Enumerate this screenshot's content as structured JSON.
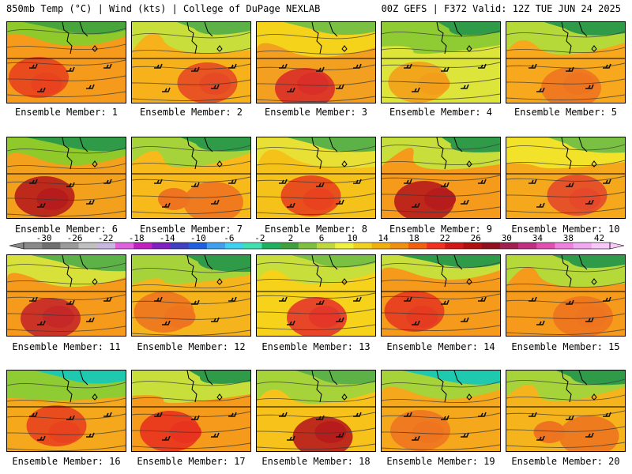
{
  "header": {
    "left_title": "850mb Temp (°C) | Wind (kts) | College of DuPage NEXLAB",
    "right_title": "00Z GEFS | F372 Valid: 12Z TUE JUN 24 2025"
  },
  "label_prefix": "Ensemble Member: ",
  "members": [
    {
      "label": "Ensemble Member: 1",
      "base": "#f59a1a",
      "hot": "#e8431e",
      "cool": "#8fca2a",
      "green": "#48a53c"
    },
    {
      "label": "Ensemble Member: 2",
      "base": "#f7b11a",
      "hot": "#e54a24",
      "cool": "#c8de3a",
      "green": "#5cb247"
    },
    {
      "label": "Ensemble Member: 3",
      "base": "#f3a020",
      "hot": "#d92f28",
      "cool": "#f5d31a",
      "green": "#7ac143"
    },
    {
      "label": "Ensemble Member: 4",
      "base": "#dde53a",
      "hot": "#f39e1a",
      "cool": "#8fcb32",
      "green": "#2f9a48"
    },
    {
      "label": "Ensemble Member: 5",
      "base": "#f7a81c",
      "hot": "#ee7420",
      "cool": "#b4d938",
      "green": "#2f9a48"
    },
    {
      "label": "Ensemble Member: 6",
      "base": "#f3a01c",
      "hot": "#b71c1c",
      "cool": "#8fca2a",
      "green": "#2f9a48"
    },
    {
      "label": "Ensemble Member: 7",
      "base": "#f7ba1a",
      "hot": "#ee7420",
      "cool": "#a6d23a",
      "green": "#2f9a48"
    },
    {
      "label": "Ensemble Member: 8",
      "base": "#f5c21a",
      "hot": "#e8431e",
      "cool": "#e8e035",
      "green": "#5cb247"
    },
    {
      "label": "Ensemble Member: 9",
      "base": "#f59a1a",
      "hot": "#b71c1c",
      "cool": "#c8de3a",
      "green": "#2f9a48"
    },
    {
      "label": "Ensemble Member: 10",
      "base": "#f5a81c",
      "hot": "#e5492a",
      "cool": "#f2e22a",
      "green": "#7ac143"
    },
    {
      "label": "Ensemble Member: 11",
      "base": "#f59a1a",
      "hot": "#c62828",
      "cool": "#d8e03a",
      "green": "#5cb247"
    },
    {
      "label": "Ensemble Member: 12",
      "base": "#f5b41c",
      "hot": "#ee7420",
      "cool": "#a6d23a",
      "green": "#2f9a48"
    },
    {
      "label": "Ensemble Member: 13",
      "base": "#f7d21a",
      "hot": "#e5362a",
      "cool": "#c8de3a",
      "green": "#7ac143"
    },
    {
      "label": "Ensemble Member: 14",
      "base": "#f59a1a",
      "hot": "#e53b20",
      "cool": "#c8de3a",
      "green": "#2f9a48"
    },
    {
      "label": "Ensemble Member: 15",
      "base": "#f59a1a",
      "hot": "#ee7420",
      "cool": "#b4d938",
      "green": "#2f9a48"
    },
    {
      "label": "Ensemble Member: 16",
      "base": "#f5a81c",
      "hot": "#e8431e",
      "cool": "#8fcb32",
      "green": "#1fc9b0"
    },
    {
      "label": "Ensemble Member: 17",
      "base": "#f59a1a",
      "hot": "#e8331e",
      "cool": "#c8de3a",
      "green": "#2f9a48"
    },
    {
      "label": "Ensemble Member: 18",
      "base": "#f7c21a",
      "hot": "#b71c1c",
      "cool": "#a6d23a",
      "green": "#5cb247"
    },
    {
      "label": "Ensemble Member: 19",
      "base": "#f5a81c",
      "hot": "#ee7420",
      "cool": "#a6d23a",
      "green": "#1fc9b0"
    },
    {
      "label": "Ensemble Member: 20",
      "base": "#f5b41c",
      "hot": "#ee7420",
      "cool": "#a6d23a",
      "green": "#2f9a48"
    }
  ],
  "colorbar": {
    "tick_labels": [
      "-30",
      "-26",
      "-22",
      "-18",
      "-14",
      "-10",
      "-6",
      "-2",
      "2",
      "6",
      "10",
      "14",
      "18",
      "22",
      "26",
      "30",
      "34",
      "38",
      "42"
    ],
    "colors": [
      "#8a8a8a",
      "#707070",
      "#9a9a9a",
      "#c0c0c0",
      "#c8b8e0",
      "#e060e0",
      "#c020c0",
      "#8020c0",
      "#4040c0",
      "#2060e0",
      "#40a0f0",
      "#40d0f0",
      "#40e0b0",
      "#20b060",
      "#40a040",
      "#80c040",
      "#c0d840",
      "#f0f040",
      "#f0d020",
      "#f0b010",
      "#f09010",
      "#f06010",
      "#f03020",
      "#d01818",
      "#b01010",
      "#901020",
      "#a02050",
      "#c03080",
      "#e050b0",
      "#f080e0",
      "#f0a8f0",
      "#f8c8f8"
    ]
  }
}
